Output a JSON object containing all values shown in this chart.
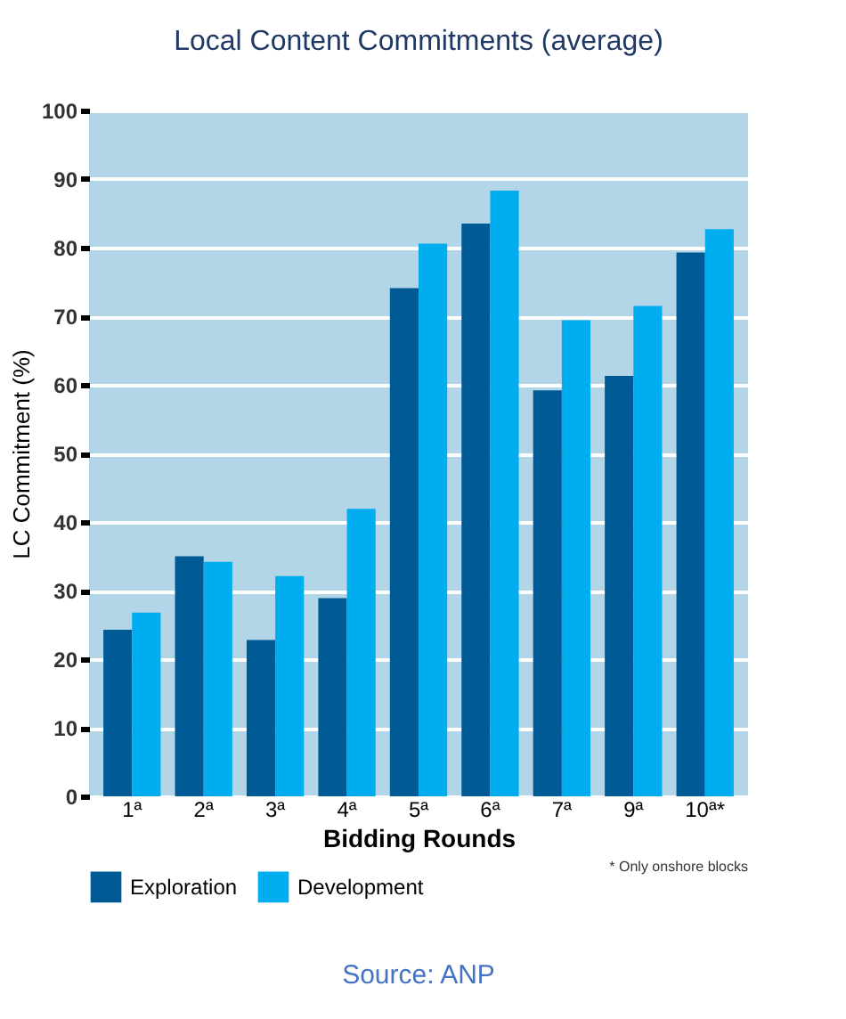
{
  "chart_data": {
    "type": "bar",
    "title": "Local Content Commitments (average)",
    "xlabel": "Bidding Rounds",
    "ylabel": "LC Commitment (%)",
    "categories": [
      "1ª",
      "2ª",
      "3ª",
      "4ª",
      "5ª",
      "6ª",
      "7ª",
      "9ª",
      "10ª*"
    ],
    "series": [
      {
        "name": "Exploration",
        "color": "#005a96",
        "values": [
          24.3,
          35.0,
          22.8,
          28.9,
          74.1,
          83.5,
          59.2,
          61.3,
          79.3
        ]
      },
      {
        "name": "Development",
        "color": "#00aeef",
        "values": [
          26.8,
          34.2,
          32.1,
          41.9,
          80.6,
          88.3,
          69.4,
          71.5,
          82.7
        ]
      }
    ],
    "ylim": [
      0,
      100
    ],
    "yticks": [
      0,
      10,
      20,
      30,
      40,
      50,
      60,
      70,
      80,
      90,
      100
    ],
    "grid": "y",
    "legend": "bottom",
    "annotations": [
      "* Only onshore blocks",
      "Source: ANP"
    ]
  }
}
